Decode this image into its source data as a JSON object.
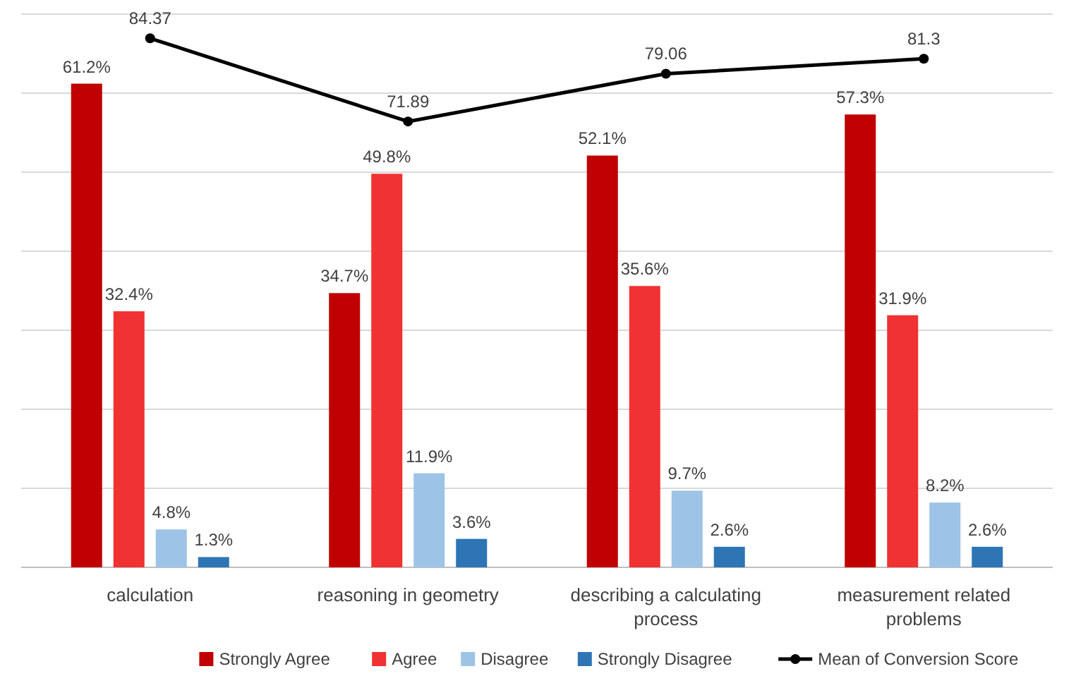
{
  "chart_data": {
    "type": "bar",
    "categories": [
      "calculation",
      "reasoning in geometry",
      "describing a calculating process",
      "measurement related problems"
    ],
    "series": [
      {
        "name": "Strongly Agree",
        "color": "#c00000",
        "values": [
          61.2,
          34.7,
          52.1,
          57.3
        ],
        "value_labels": [
          "61.2%",
          "34.7%",
          "52.1%",
          "57.3%"
        ]
      },
      {
        "name": "Agree",
        "color": "#f03232",
        "values": [
          32.4,
          49.8,
          35.6,
          31.9
        ],
        "value_labels": [
          "32.4%",
          "49.8%",
          "35.6%",
          "31.9%"
        ]
      },
      {
        "name": "Disagree",
        "color": "#9dc3e6",
        "values": [
          4.8,
          11.9,
          9.7,
          8.2
        ],
        "value_labels": [
          "4.8%",
          "11.9%",
          "9.7%",
          "8.2%"
        ]
      },
      {
        "name": "Strongly Disagree",
        "color": "#2e75b6",
        "values": [
          1.3,
          3.6,
          2.6,
          2.6
        ],
        "value_labels": [
          "1.3%",
          "3.6%",
          "2.6%",
          "2.6%"
        ]
      },
      {
        "name": "Mean of Conversion Score",
        "type": "line",
        "axis": "y2",
        "color": "#000000",
        "marker": "circle",
        "values": [
          84.37,
          71.89,
          79.06,
          81.3
        ],
        "value_labels": [
          "84.37",
          "71.89",
          "79.06",
          "81.3"
        ]
      }
    ],
    "ylim": [
      0,
      70
    ],
    "yticks": [
      {
        "value": 0,
        "label": null
      },
      {
        "value": 10,
        "label": null
      },
      {
        "value": 20,
        "label": null
      },
      {
        "value": 30,
        "label": null
      },
      {
        "value": 40,
        "label": null
      },
      {
        "value": 50,
        "label": null
      },
      {
        "value": 60,
        "label": null
      },
      {
        "value": 70,
        "label": null
      }
    ],
    "y2lim": [
      5,
      88
    ],
    "tick_labels": "x",
    "grid": "y",
    "legend": "bottom"
  }
}
